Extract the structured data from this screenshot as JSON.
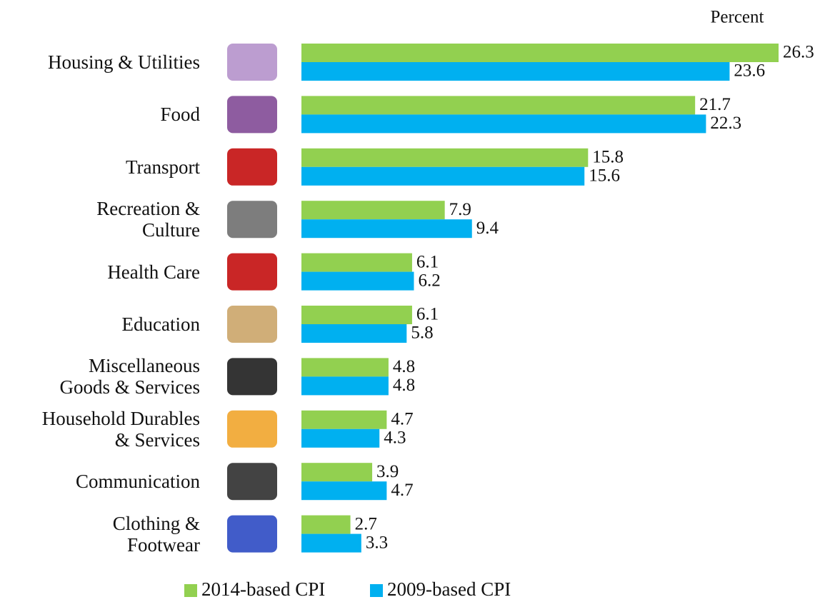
{
  "chart_data": {
    "type": "bar",
    "orientation": "horizontal",
    "unit_label": "Percent",
    "categories": [
      "Housing & Utilities",
      "Food",
      "Transport",
      "Recreation &\nCulture",
      "Health Care",
      "Education",
      "Miscellaneous\nGoods & Services",
      "Household Durables\n& Services",
      "Communication",
      "Clothing &\nFootwear"
    ],
    "series": [
      {
        "name": "2014-based CPI",
        "color": "#92d050",
        "values": [
          26.3,
          21.7,
          15.8,
          7.9,
          6.1,
          6.1,
          4.8,
          4.7,
          3.9,
          2.7
        ]
      },
      {
        "name": "2009-based CPI",
        "color": "#00b0f0",
        "values": [
          23.6,
          22.3,
          15.6,
          9.4,
          6.2,
          5.8,
          4.8,
          4.3,
          4.7,
          3.3
        ]
      }
    ],
    "legend": "bottom"
  }
}
